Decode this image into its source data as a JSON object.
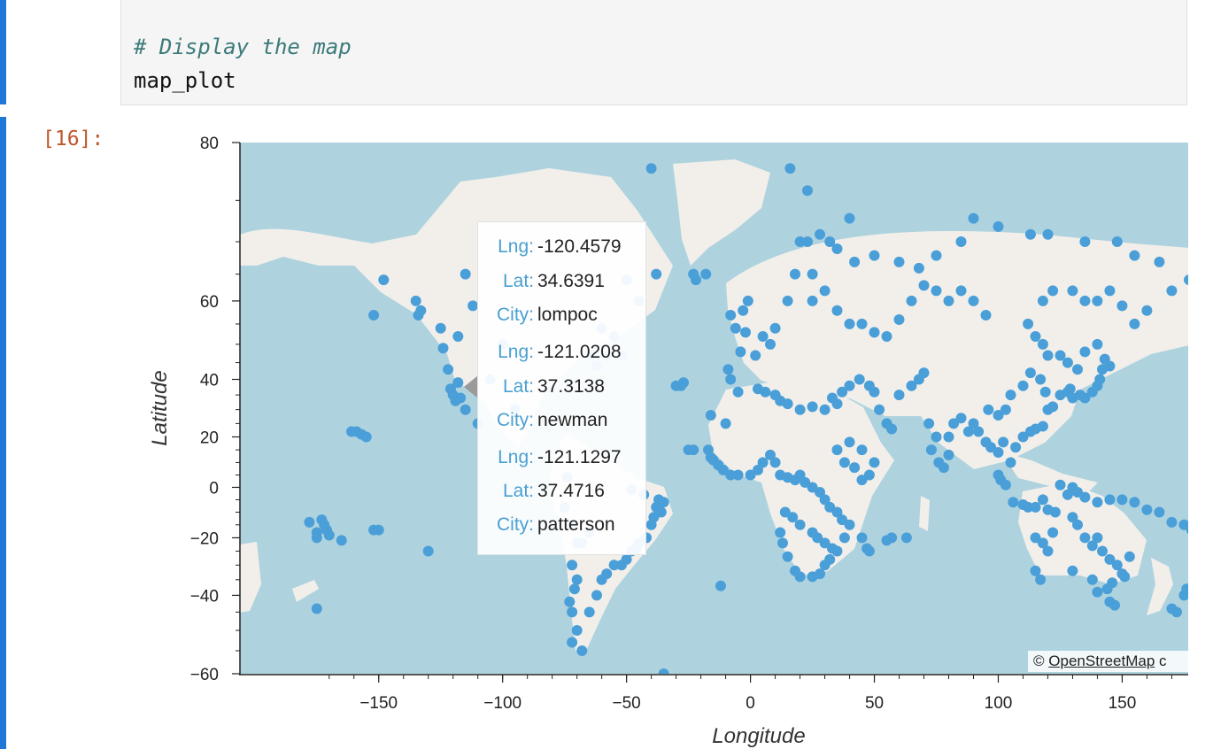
{
  "code_cell": {
    "comment": "# Display the map",
    "code": "map_plot"
  },
  "output_cell": {
    "prompt": "[16]:"
  },
  "colors": {
    "ocean": "#aed3df",
    "land": "#f2efea",
    "marker": "#4a9fd8",
    "cell_bar": "#1f77d8",
    "tooltip_key": "#4a9fd0"
  },
  "tooltip": {
    "entries": [
      {
        "lng_label": "Lng:",
        "lng": "-120.4579",
        "lat_label": "Lat:",
        "lat": "34.6391",
        "city_label": "City:",
        "city": "lompoc"
      },
      {
        "lng_label": "Lng:",
        "lng": "-121.0208",
        "lat_label": "Lat:",
        "lat": "37.3138",
        "city_label": "City:",
        "city": "newman"
      },
      {
        "lng_label": "Lng:",
        "lng": "-121.1297",
        "lat_label": "Lat:",
        "lat": "37.4716",
        "city_label": "City:",
        "city": "patterson"
      }
    ]
  },
  "attribution": {
    "symbol": "©",
    "link": "OpenStreetMap",
    "suffix": "c"
  },
  "chart_data": {
    "type": "scatter",
    "xlabel": "Longitude",
    "ylabel": "Latitude",
    "xlim": [
      -206,
      177
    ],
    "ylim": [
      -60,
      80
    ],
    "x_ticks": [
      -150,
      -100,
      -50,
      0,
      50,
      100,
      150
    ],
    "y_ticks": [
      -60,
      -40,
      -20,
      0,
      20,
      40,
      60,
      80
    ],
    "y_scale": "web-mercator",
    "points": [
      [
        -178,
        -14
      ],
      [
        -175,
        -18
      ],
      [
        -175,
        -20
      ],
      [
        -173,
        -13
      ],
      [
        -172,
        -15
      ],
      [
        -171,
        -17
      ],
      [
        -170,
        -19
      ],
      [
        -165,
        -21
      ],
      [
        -161,
        22
      ],
      [
        -159,
        22
      ],
      [
        -157,
        21
      ],
      [
        -155,
        20
      ],
      [
        -152,
        -17
      ],
      [
        -150,
        -17
      ],
      [
        -152,
        57
      ],
      [
        -148,
        64
      ],
      [
        -175,
        -44
      ],
      [
        -130,
        -25
      ],
      [
        -135,
        60
      ],
      [
        -134,
        57
      ],
      [
        -133,
        58
      ],
      [
        -125,
        54
      ],
      [
        -124,
        49
      ],
      [
        -122,
        43
      ],
      [
        -118,
        52
      ],
      [
        -112,
        59
      ],
      [
        -115,
        65
      ],
      [
        -117,
        34
      ],
      [
        -121,
        37
      ],
      [
        -120,
        35
      ],
      [
        -118,
        39
      ],
      [
        -119,
        33
      ],
      [
        -115,
        30
      ],
      [
        -110,
        25
      ],
      [
        -105,
        40
      ],
      [
        -100,
        50
      ],
      [
        -95,
        30
      ],
      [
        -74,
        4
      ],
      [
        -75,
        -8
      ],
      [
        -72,
        -15
      ],
      [
        -70,
        -22
      ],
      [
        -72,
        -30
      ],
      [
        -70,
        -35
      ],
      [
        -71,
        -38
      ],
      [
        -73,
        -42
      ],
      [
        -72,
        -45
      ],
      [
        -70,
        -50
      ],
      [
        -72,
        -53
      ],
      [
        -68,
        -55
      ],
      [
        -65,
        -45
      ],
      [
        -62,
        -40
      ],
      [
        -60,
        -35
      ],
      [
        -58,
        -33
      ],
      [
        -55,
        -30
      ],
      [
        -50,
        -28
      ],
      [
        -48,
        -25
      ],
      [
        -46,
        -24
      ],
      [
        -45,
        -22
      ],
      [
        -42,
        -20
      ],
      [
        -40,
        -15
      ],
      [
        -39,
        -12
      ],
      [
        -38,
        -8
      ],
      [
        -37,
        -5
      ],
      [
        -35,
        -6
      ],
      [
        -36,
        -10
      ],
      [
        -43,
        -3
      ],
      [
        -48,
        -1
      ],
      [
        -52,
        -30
      ],
      [
        -65,
        -18
      ],
      [
        -68,
        -22
      ],
      [
        -35,
        -60
      ],
      [
        -62,
        44
      ],
      [
        -64,
        47
      ],
      [
        -58,
        47
      ],
      [
        -52,
        47
      ],
      [
        -55,
        52
      ],
      [
        -60,
        54
      ],
      [
        -45,
        60
      ],
      [
        -50,
        64
      ],
      [
        -38,
        65
      ],
      [
        -22,
        64
      ],
      [
        -23,
        65
      ],
      [
        -18,
        65
      ],
      [
        -30,
        38
      ],
      [
        -28,
        38
      ],
      [
        -27,
        39
      ],
      [
        -25,
        15
      ],
      [
        -23,
        15
      ],
      [
        -17,
        15
      ],
      [
        -16,
        12
      ],
      [
        -15,
        11
      ],
      [
        -13,
        9
      ],
      [
        -11,
        7
      ],
      [
        -8,
        5
      ],
      [
        -5,
        5
      ],
      [
        -10,
        25
      ],
      [
        -16,
        28
      ],
      [
        -12,
        -37
      ],
      [
        -5,
        36
      ],
      [
        -8,
        40
      ],
      [
        -9,
        43
      ],
      [
        -4,
        48
      ],
      [
        -2,
        53
      ],
      [
        -6,
        54
      ],
      [
        -8,
        57
      ],
      [
        -3,
        58
      ],
      [
        -1,
        60
      ],
      [
        2,
        47
      ],
      [
        5,
        52
      ],
      [
        8,
        50
      ],
      [
        10,
        54
      ],
      [
        15,
        60
      ],
      [
        18,
        65
      ],
      [
        25,
        65
      ],
      [
        20,
        70
      ],
      [
        23,
        70
      ],
      [
        28,
        71
      ],
      [
        32,
        70
      ],
      [
        25,
        60
      ],
      [
        30,
        62
      ],
      [
        35,
        58
      ],
      [
        40,
        55
      ],
      [
        45,
        55
      ],
      [
        50,
        53
      ],
      [
        55,
        52
      ],
      [
        60,
        56
      ],
      [
        65,
        60
      ],
      [
        70,
        63
      ],
      [
        75,
        62
      ],
      [
        80,
        60
      ],
      [
        85,
        62
      ],
      [
        90,
        60
      ],
      [
        95,
        57
      ],
      [
        3,
        37
      ],
      [
        6,
        36
      ],
      [
        10,
        35
      ],
      [
        12,
        33
      ],
      [
        15,
        32
      ],
      [
        20,
        30
      ],
      [
        25,
        31
      ],
      [
        30,
        30
      ],
      [
        33,
        34
      ],
      [
        35,
        32
      ],
      [
        37,
        36
      ],
      [
        40,
        38
      ],
      [
        44,
        40
      ],
      [
        48,
        38
      ],
      [
        50,
        36
      ],
      [
        52,
        30
      ],
      [
        55,
        25
      ],
      [
        57,
        23
      ],
      [
        45,
        15
      ],
      [
        40,
        18
      ],
      [
        35,
        15
      ],
      [
        38,
        10
      ],
      [
        42,
        8
      ],
      [
        45,
        3
      ],
      [
        48,
        5
      ],
      [
        50,
        10
      ],
      [
        0,
        5
      ],
      [
        3,
        7
      ],
      [
        5,
        10
      ],
      [
        8,
        13
      ],
      [
        10,
        10
      ],
      [
        12,
        5
      ],
      [
        15,
        4
      ],
      [
        18,
        3
      ],
      [
        20,
        5
      ],
      [
        22,
        2
      ],
      [
        25,
        0
      ],
      [
        28,
        -2
      ],
      [
        30,
        -5
      ],
      [
        32,
        -8
      ],
      [
        35,
        -10
      ],
      [
        37,
        -13
      ],
      [
        40,
        -15
      ],
      [
        38,
        -20
      ],
      [
        35,
        -25
      ],
      [
        32,
        -28
      ],
      [
        30,
        -30
      ],
      [
        28,
        -33
      ],
      [
        25,
        -34
      ],
      [
        20,
        -34
      ],
      [
        18,
        -32
      ],
      [
        15,
        -27
      ],
      [
        13,
        -22
      ],
      [
        12,
        -18
      ],
      [
        14,
        -10
      ],
      [
        17,
        -12
      ],
      [
        20,
        -15
      ],
      [
        25,
        -18
      ],
      [
        27,
        -20
      ],
      [
        30,
        -22
      ],
      [
        33,
        -24
      ],
      [
        45,
        -20
      ],
      [
        47,
        -24
      ],
      [
        48,
        -25
      ],
      [
        55,
        -21
      ],
      [
        57,
        -20
      ],
      [
        63,
        -20
      ],
      [
        60,
        35
      ],
      [
        65,
        38
      ],
      [
        68,
        40
      ],
      [
        70,
        42
      ],
      [
        72,
        25
      ],
      [
        75,
        20
      ],
      [
        73,
        15
      ],
      [
        76,
        10
      ],
      [
        78,
        8
      ],
      [
        80,
        13
      ],
      [
        80,
        20
      ],
      [
        82,
        25
      ],
      [
        85,
        27
      ],
      [
        88,
        22
      ],
      [
        90,
        25
      ],
      [
        92,
        22
      ],
      [
        95,
        18
      ],
      [
        97,
        16
      ],
      [
        100,
        14
      ],
      [
        102,
        18
      ],
      [
        105,
        10
      ],
      [
        107,
        16
      ],
      [
        110,
        20
      ],
      [
        113,
        22
      ],
      [
        115,
        23
      ],
      [
        118,
        24
      ],
      [
        120,
        30
      ],
      [
        122,
        31
      ],
      [
        119,
        36
      ],
      [
        117,
        40
      ],
      [
        113,
        42
      ],
      [
        110,
        38
      ],
      [
        105,
        35
      ],
      [
        103,
        30
      ],
      [
        100,
        28
      ],
      [
        96,
        30
      ],
      [
        100,
        5
      ],
      [
        101,
        3
      ],
      [
        103,
        1
      ],
      [
        106,
        -6
      ],
      [
        110,
        -7
      ],
      [
        112,
        -8
      ],
      [
        115,
        -8
      ],
      [
        118,
        -5
      ],
      [
        120,
        -9
      ],
      [
        123,
        -10
      ],
      [
        125,
        1
      ],
      [
        128,
        -3
      ],
      [
        130,
        0
      ],
      [
        132,
        -2
      ],
      [
        135,
        -4
      ],
      [
        140,
        -6
      ],
      [
        145,
        -5
      ],
      [
        150,
        -5
      ],
      [
        155,
        -6
      ],
      [
        160,
        -9
      ],
      [
        165,
        -10
      ],
      [
        170,
        -14
      ],
      [
        175,
        -15
      ],
      [
        178,
        -17
      ],
      [
        115,
        -20
      ],
      [
        118,
        -22
      ],
      [
        120,
        -25
      ],
      [
        122,
        -18
      ],
      [
        130,
        -12
      ],
      [
        132,
        -15
      ],
      [
        135,
        -20
      ],
      [
        138,
        -23
      ],
      [
        140,
        -20
      ],
      [
        142,
        -25
      ],
      [
        145,
        -28
      ],
      [
        148,
        -30
      ],
      [
        150,
        -33
      ],
      [
        151,
        -34
      ],
      [
        153,
        -27
      ],
      [
        146,
        -36
      ],
      [
        144,
        -38
      ],
      [
        138,
        -35
      ],
      [
        130,
        -32
      ],
      [
        115,
        -32
      ],
      [
        117,
        -35
      ],
      [
        140,
        -39
      ],
      [
        145,
        -42
      ],
      [
        147,
        -43
      ],
      [
        170,
        -44
      ],
      [
        172,
        -45
      ],
      [
        175,
        -40
      ],
      [
        176,
        -38
      ],
      [
        125,
        35
      ],
      [
        128,
        36
      ],
      [
        129,
        37
      ],
      [
        130,
        34
      ],
      [
        133,
        35
      ],
      [
        135,
        34
      ],
      [
        138,
        36
      ],
      [
        140,
        38
      ],
      [
        141,
        40
      ],
      [
        142,
        43
      ],
      [
        145,
        44
      ],
      [
        143,
        46
      ],
      [
        140,
        50
      ],
      [
        135,
        48
      ],
      [
        132,
        43
      ],
      [
        128,
        45
      ],
      [
        125,
        47
      ],
      [
        120,
        47
      ],
      [
        118,
        50
      ],
      [
        115,
        52
      ],
      [
        112,
        55
      ],
      [
        118,
        60
      ],
      [
        122,
        62
      ],
      [
        130,
        62
      ],
      [
        135,
        60
      ],
      [
        140,
        60
      ],
      [
        145,
        62
      ],
      [
        150,
        59
      ],
      [
        155,
        55
      ],
      [
        160,
        58
      ],
      [
        165,
        67
      ],
      [
        170,
        62
      ],
      [
        177,
        64
      ],
      [
        135,
        70
      ],
      [
        148,
        70
      ],
      [
        155,
        68
      ],
      [
        120,
        71
      ],
      [
        113,
        71
      ],
      [
        100,
        72
      ],
      [
        90,
        73
      ],
      [
        85,
        70
      ],
      [
        75,
        68
      ],
      [
        68,
        66
      ],
      [
        60,
        67
      ],
      [
        50,
        68
      ],
      [
        42,
        67
      ],
      [
        35,
        69
      ],
      [
        23,
        76
      ],
      [
        16,
        78
      ],
      [
        40,
        73
      ],
      [
        -40,
        78
      ]
    ]
  }
}
